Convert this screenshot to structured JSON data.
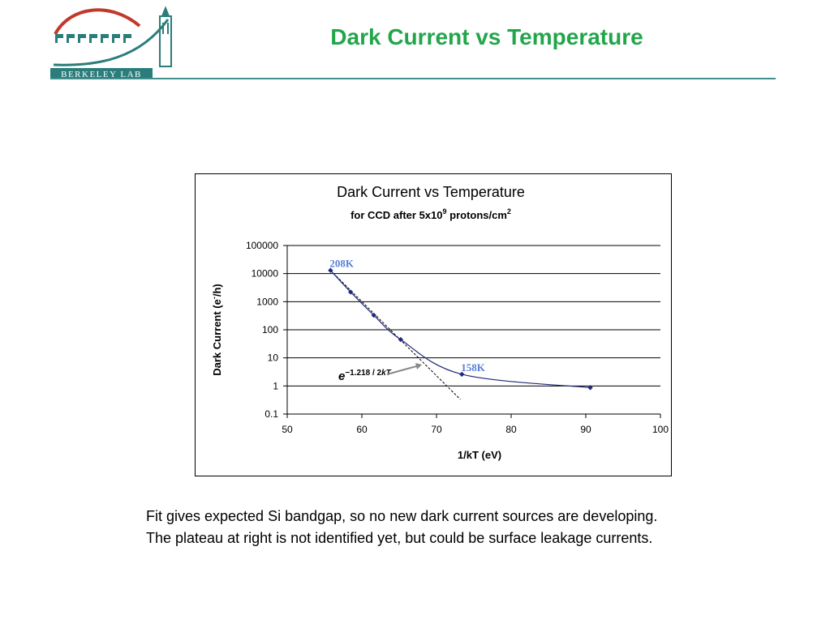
{
  "header": {
    "title": "Dark Current vs Temperature",
    "logo_text": "BERKELEY LAB",
    "colors": {
      "title": "#22a64a",
      "rule": "#3f8f8c",
      "logo_red": "#c0392b",
      "logo_teal": "#2a7d7b"
    }
  },
  "chart_data": {
    "type": "scatter",
    "title": "Dark Current vs Temperature",
    "subtitle": {
      "base": "for CCD after 5x10",
      "exp": "9",
      "mid": " protons/cm",
      "exp2": "2"
    },
    "xlabel": "1/kT (eV)",
    "ylabel": {
      "base": "Dark Current (e",
      "sup": "-",
      "end": "/h)"
    },
    "x_ticks": [
      "50",
      "60",
      "70",
      "80",
      "90",
      "100"
    ],
    "y_ticks": [
      "0.1",
      "1",
      "10",
      "100",
      "1000",
      "10000",
      "100000"
    ],
    "xlim": [
      50,
      100
    ],
    "ylim": [
      0.1,
      100000
    ],
    "y_scale": "log",
    "grid": "horizontal",
    "series": [
      {
        "points": [
          {
            "x": 55.8,
            "y": 13000
          },
          {
            "x": 58.5,
            "y": 2200
          },
          {
            "x": 61.6,
            "y": 330
          },
          {
            "x": 65.2,
            "y": 45
          },
          {
            "x": 73.4,
            "y": 2.6
          },
          {
            "x": 90.6,
            "y": 0.87
          }
        ],
        "color": "#1f2a7a"
      }
    ],
    "fit_line": {
      "x": [
        55.8,
        73.2
      ],
      "y": [
        13000,
        0.33
      ],
      "style": "dashed",
      "color": "#000000"
    },
    "annotations": [
      {
        "text": "208K",
        "x": 55.8,
        "y": 13000,
        "color": "#5b7fd6"
      },
      {
        "text": "158K",
        "x": 73.4,
        "y": 2.6,
        "color": "#5b7fd6"
      }
    ],
    "formula": {
      "base": "e",
      "exp": "−1.218 / 2",
      "exp_var": "kT"
    }
  },
  "body": {
    "line1": "Fit gives expected Si bandgap, so no new dark current sources are developing.",
    "line2": "The plateau at right is not identified yet, but could be surface leakage currents."
  }
}
